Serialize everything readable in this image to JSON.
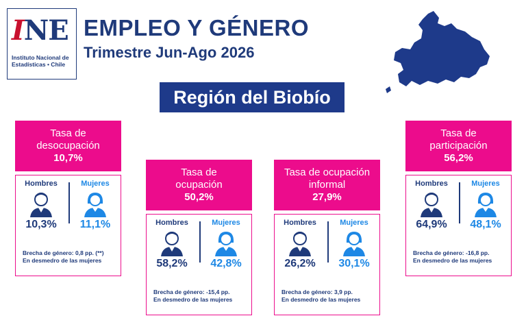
{
  "logo": {
    "ine_i": "I",
    "ine_ne": "NE",
    "subtitle": "Instituto Nacional de Estadísticas • Chile"
  },
  "header": {
    "title": "EMPLEO Y GÉNERO",
    "subtitle": "Trimestre Jun-Ago 2026"
  },
  "region": "Región del Biobío",
  "colors": {
    "navy": "#1f3a7a",
    "pink": "#ec0c8c",
    "blue": "#1e88e5"
  },
  "cards": [
    {
      "label": "Tasa de\ndesocupación",
      "value": "10,7%",
      "men_label": "Hombres",
      "women_label": "Mujeres",
      "men": "10,3%",
      "women": "11,1%",
      "gap": "Brecha de género: 0,8 pp. (**)",
      "gap_note": "En desmedro de las mujeres"
    },
    {
      "label": "Tasa de\nocupación",
      "value": "50,2%",
      "men_label": "Hombres",
      "women_label": "Mujeres",
      "men": "58,2%",
      "women": "42,8%",
      "gap": "Brecha de género: -15,4 pp.",
      "gap_note": "En desmedro de las mujeres"
    },
    {
      "label": "Tasa de ocupación\ninformal",
      "value": "27,9%",
      "men_label": "Hombres",
      "women_label": "Mujeres",
      "men": "26,2%",
      "women": "30,1%",
      "gap": "Brecha de género: 3,9 pp.",
      "gap_note": "En desmedro de las mujeres"
    },
    {
      "label": "Tasa de\nparticipación",
      "value": "56,2%",
      "men_label": "Hombres",
      "women_label": "Mujeres",
      "men": "64,9%",
      "women": "48,1%",
      "gap": "Brecha de género: -16,8 pp.",
      "gap_note": "En desmedro de las mujeres"
    }
  ]
}
